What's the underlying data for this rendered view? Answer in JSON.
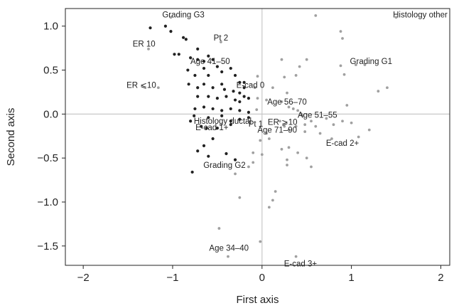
{
  "chart_data": {
    "type": "scatter",
    "title": "",
    "xlabel": "First axis",
    "ylabel": "Second axis",
    "xlim": [
      -2.2,
      2.1
    ],
    "ylim": [
      -1.72,
      1.2
    ],
    "xticks": [
      -2,
      -1,
      0,
      1,
      2
    ],
    "xtick_labels": [
      "−2",
      "−1",
      "0",
      "1",
      "2"
    ],
    "yticks": [
      1.0,
      0.5,
      0.0,
      -0.5,
      -1.0,
      -1.5
    ],
    "ytick_labels": [
      "1.0",
      "0.5",
      "0.0",
      "−0.5",
      "−1.0",
      "−1.5"
    ],
    "reference_lines": {
      "x": 0,
      "y": 0
    },
    "grid": false,
    "series": [
      {
        "color": "#222222",
        "values": [
          [
            -1.25,
            0.98
          ],
          [
            -1.08,
            1.0
          ],
          [
            -1.02,
            0.94
          ],
          [
            -0.88,
            0.87
          ],
          [
            -0.85,
            0.85
          ],
          [
            -0.72,
            0.74
          ],
          [
            -0.98,
            0.68
          ],
          [
            -0.93,
            0.68
          ],
          [
            -0.8,
            0.64
          ],
          [
            -0.72,
            0.62
          ],
          [
            -0.65,
            0.6
          ],
          [
            -0.6,
            0.66
          ],
          [
            -0.55,
            0.62
          ],
          [
            -0.83,
            0.5
          ],
          [
            -0.75,
            0.44
          ],
          [
            -0.65,
            0.52
          ],
          [
            -0.6,
            0.44
          ],
          [
            -0.5,
            0.54
          ],
          [
            -0.45,
            0.48
          ],
          [
            -0.35,
            0.52
          ],
          [
            -0.3,
            0.44
          ],
          [
            -0.25,
            0.36
          ],
          [
            -0.2,
            0.36
          ],
          [
            -0.2,
            0.3
          ],
          [
            -0.82,
            0.34
          ],
          [
            -0.72,
            0.3
          ],
          [
            -0.65,
            0.34
          ],
          [
            -0.55,
            0.3
          ],
          [
            -0.45,
            0.34
          ],
          [
            -0.42,
            0.28
          ],
          [
            -0.32,
            0.26
          ],
          [
            -0.25,
            0.24
          ],
          [
            -0.2,
            0.2
          ],
          [
            -0.72,
            0.2
          ],
          [
            -0.6,
            0.2
          ],
          [
            -0.5,
            0.18
          ],
          [
            -0.4,
            0.2
          ],
          [
            -0.3,
            0.16
          ],
          [
            -0.25,
            0.14
          ],
          [
            -0.15,
            0.18
          ],
          [
            -0.75,
            0.06
          ],
          [
            -0.65,
            0.08
          ],
          [
            -0.55,
            0.06
          ],
          [
            -0.45,
            0.04
          ],
          [
            -0.35,
            0.06
          ],
          [
            -0.25,
            0.04
          ],
          [
            -0.15,
            0.02
          ],
          [
            -0.76,
            -0.02
          ],
          [
            -0.6,
            -0.04
          ],
          [
            -0.45,
            -0.02
          ],
          [
            -0.35,
            -0.08
          ],
          [
            -0.25,
            -0.06
          ],
          [
            -0.15,
            -0.04
          ],
          [
            -0.8,
            -0.08
          ],
          [
            -0.68,
            -0.14
          ],
          [
            -0.62,
            -0.16
          ],
          [
            -0.5,
            -0.16
          ],
          [
            -0.35,
            -0.12
          ],
          [
            -0.55,
            -0.28
          ],
          [
            -0.65,
            -0.36
          ],
          [
            -0.72,
            -0.42
          ],
          [
            -0.6,
            -0.48
          ],
          [
            -0.4,
            -0.45
          ],
          [
            -0.3,
            -0.52
          ],
          [
            -0.78,
            -0.66
          ]
        ]
      },
      {
        "color": "#a0a0a0",
        "values": [
          [
            -1.02,
            1.1
          ],
          [
            -1.27,
            0.74
          ],
          [
            -1.16,
            0.3
          ],
          [
            -0.46,
            0.82
          ],
          [
            -0.05,
            0.43
          ],
          [
            -0.08,
            0.3
          ],
          [
            -0.05,
            0.18
          ],
          [
            -0.06,
            0.05
          ],
          [
            0.05,
            0.16
          ],
          [
            0.12,
            0.3
          ],
          [
            0.22,
            0.14
          ],
          [
            0.28,
            0.24
          ],
          [
            0.3,
            0.08
          ],
          [
            0.35,
            0.06
          ],
          [
            0.4,
            0.04
          ],
          [
            0.44,
            0.0
          ],
          [
            0.45,
            -0.02
          ],
          [
            0.2,
            -0.08
          ],
          [
            0.25,
            -0.14
          ],
          [
            0.3,
            -0.18
          ],
          [
            0.38,
            -0.14
          ],
          [
            0.48,
            -0.12
          ],
          [
            0.55,
            -0.08
          ],
          [
            0.6,
            -0.14
          ],
          [
            0.72,
            -0.05
          ],
          [
            0.8,
            -0.12
          ],
          [
            0.9,
            -0.08
          ],
          [
            0.95,
            0.1
          ],
          [
            1.0,
            -0.1
          ],
          [
            0.78,
            -0.28
          ],
          [
            1.08,
            -0.26
          ],
          [
            1.2,
            -0.18
          ],
          [
            0.48,
            -0.2
          ],
          [
            0.65,
            -0.22
          ],
          [
            0.05,
            -0.22
          ],
          [
            0.08,
            -0.28
          ],
          [
            -0.02,
            -0.3
          ],
          [
            0.22,
            -0.4
          ],
          [
            0.3,
            -0.38
          ],
          [
            0.4,
            -0.44
          ],
          [
            0.5,
            -0.5
          ],
          [
            0.55,
            -0.6
          ],
          [
            0.28,
            -0.52
          ],
          [
            0.28,
            -0.58
          ],
          [
            0.0,
            -0.46
          ],
          [
            -0.1,
            -0.44
          ],
          [
            -0.1,
            -0.55
          ],
          [
            -0.15,
            -0.6
          ],
          [
            -0.3,
            -0.68
          ],
          [
            -0.25,
            -0.95
          ],
          [
            0.15,
            -0.88
          ],
          [
            0.12,
            -0.98
          ],
          [
            0.08,
            -1.06
          ],
          [
            -0.48,
            -1.3
          ],
          [
            -0.38,
            -1.62
          ],
          [
            -0.02,
            -1.45
          ],
          [
            0.38,
            -1.62
          ],
          [
            0.6,
            1.12
          ],
          [
            0.42,
            0.54
          ],
          [
            0.38,
            0.44
          ],
          [
            0.22,
            0.62
          ],
          [
            0.25,
            0.42
          ],
          [
            0.5,
            0.62
          ],
          [
            0.88,
            0.94
          ],
          [
            0.9,
            0.86
          ],
          [
            0.88,
            0.55
          ],
          [
            1.05,
            0.56
          ],
          [
            1.15,
            0.56
          ],
          [
            0.92,
            0.45
          ],
          [
            1.4,
            0.3
          ],
          [
            1.3,
            0.26
          ],
          [
            1.5,
            1.1
          ]
        ]
      }
    ],
    "annotations": [
      {
        "text": "Grading G3",
        "x": -0.88,
        "y": 1.13,
        "anchor": "middle"
      },
      {
        "text": "Histology other",
        "x": 1.77,
        "y": 1.13,
        "anchor": "middle"
      },
      {
        "text": "ER 10",
        "x": -1.32,
        "y": 0.8,
        "anchor": "middle"
      },
      {
        "text": "Pt 2",
        "x": -0.46,
        "y": 0.87,
        "anchor": "middle"
      },
      {
        "text": "Age 41–50",
        "x": -0.58,
        "y": 0.6,
        "anchor": "middle"
      },
      {
        "text": "Grading G1",
        "x": 1.22,
        "y": 0.6,
        "anchor": "middle"
      },
      {
        "text": "ER ⩽10",
        "x": -1.35,
        "y": 0.33,
        "anchor": "middle"
      },
      {
        "text": "E-cad 0",
        "x": -0.13,
        "y": 0.33,
        "anchor": "middle"
      },
      {
        "text": "Age 56–70",
        "x": 0.28,
        "y": 0.14,
        "anchor": "middle"
      },
      {
        "text": "Age 51–55",
        "x": 0.62,
        "y": -0.01,
        "anchor": "middle"
      },
      {
        "text": "Histology ductal",
        "x": -0.44,
        "y": -0.08,
        "anchor": "middle"
      },
      {
        "text": "Pt 1",
        "x": -0.07,
        "y": -0.11,
        "anchor": "middle"
      },
      {
        "text": "ER ⩾10",
        "x": 0.23,
        "y": -0.09,
        "anchor": "middle"
      },
      {
        "text": "E-cad 1+",
        "x": -0.56,
        "y": -0.15,
        "anchor": "middle"
      },
      {
        "text": "Age 71–90",
        "x": 0.17,
        "y": -0.18,
        "anchor": "middle"
      },
      {
        "text": "E-cad 2+",
        "x": 0.9,
        "y": -0.33,
        "anchor": "middle"
      },
      {
        "text": "Grading G2",
        "x": -0.42,
        "y": -0.58,
        "anchor": "middle"
      },
      {
        "text": "Age 34–40",
        "x": -0.37,
        "y": -1.52,
        "anchor": "middle"
      },
      {
        "text": "E-cad 3+",
        "x": 0.43,
        "y": -1.7,
        "anchor": "middle"
      }
    ]
  }
}
